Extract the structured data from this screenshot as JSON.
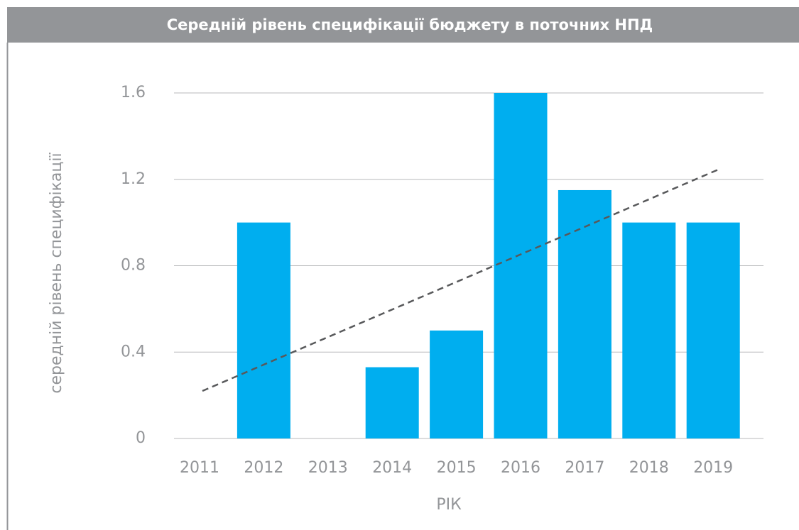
{
  "chart_data": {
    "type": "bar",
    "title": "Середній рівень специфікації бюджету в поточних НПД",
    "categories": [
      "2011",
      "2012",
      "2013",
      "2014",
      "2015",
      "2016",
      "2017",
      "2018",
      "2019"
    ],
    "values": [
      0,
      1.0,
      0,
      0.33,
      0.5,
      1.6,
      1.15,
      1.0,
      1.0
    ],
    "color": "#00aeef",
    "trendline": [
      0.22,
      1.245
    ],
    "ylim": [
      0,
      1.6
    ],
    "yticks": [
      0,
      0.4,
      0.8,
      1.2,
      1.6
    ],
    "grid": true,
    "x_label": "РІК",
    "y_label": "середній рівень специфікації"
  }
}
